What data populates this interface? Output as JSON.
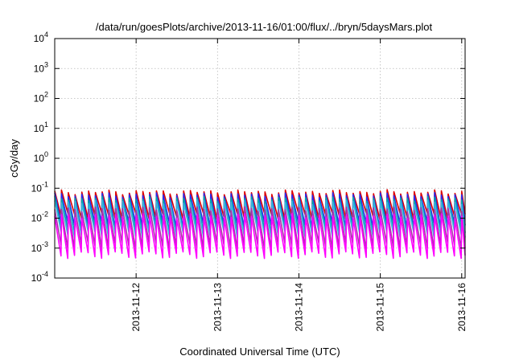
{
  "chart_data": {
    "type": "line",
    "title": "/data/run/goesPlots/archive/2013-11-16/01:00/flux/../bryn/5daysMars.plot",
    "xlabel": "Coordinated Universal Time (UTC)",
    "ylabel": "cGy/day",
    "yscale": "log",
    "ylim": [
      0.0001,
      10000
    ],
    "xlim": [
      "2013-11-11T00:00",
      "2013-11-16T01:00"
    ],
    "grid": true,
    "legend": "none",
    "y_ticks": [
      {
        "base": "10",
        "exp": "-4",
        "value": 0.0001
      },
      {
        "base": "10",
        "exp": "-3",
        "value": 0.001
      },
      {
        "base": "10",
        "exp": "-2",
        "value": 0.01
      },
      {
        "base": "10",
        "exp": "-1",
        "value": 0.1
      },
      {
        "base": "10",
        "exp": "0",
        "value": 1
      },
      {
        "base": "10",
        "exp": "1",
        "value": 10
      },
      {
        "base": "10",
        "exp": "2",
        "value": 100
      },
      {
        "base": "10",
        "exp": "3",
        "value": 1000
      },
      {
        "base": "10",
        "exp": "4",
        "value": 10000
      }
    ],
    "x_ticks": [
      {
        "label": "2013-11-12",
        "value": "2013-11-12T00:00"
      },
      {
        "label": "2013-11-13",
        "value": "2013-11-13T00:00"
      },
      {
        "label": "2013-11-14",
        "value": "2013-11-14T00:00"
      },
      {
        "label": "2013-11-15",
        "value": "2013-11-15T00:00"
      },
      {
        "label": "2013-11-16",
        "value": "2013-11-16T00:00"
      }
    ],
    "cycle_hours": 2,
    "series": [
      {
        "color": "#dd0000",
        "peak": 0.075,
        "trough": 0.012,
        "peaks_dates": [
          "2013-11-13T19:00"
        ],
        "peak_values": [
          0.09
        ]
      },
      {
        "color": "#2a2aee",
        "peak": 0.06,
        "trough": 0.006
      },
      {
        "color": "#00aaaa",
        "peak": 0.045,
        "trough": 0.004
      },
      {
        "color": "#3bb3e0",
        "peak": 0.035,
        "trough": 0.003
      },
      {
        "color": "#aa33aa",
        "peak": 0.02,
        "trough": 0.0012
      },
      {
        "color": "#ff00ff",
        "peak": 0.012,
        "trough": 0.0006
      }
    ]
  }
}
